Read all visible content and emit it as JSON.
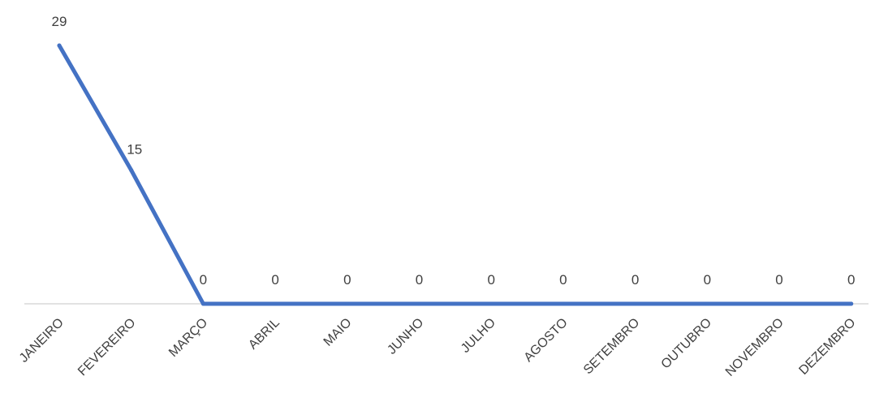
{
  "chart_data": {
    "type": "line",
    "categories": [
      "JANEIRO",
      "FEVEREIRO",
      "MARÇO",
      "ABRIL",
      "MAIO",
      "JUNHO",
      "JULHO",
      "AGOSTO",
      "SETEMBRO",
      "OUTUBRO",
      "NOVEMBRO",
      "DEZEMBRO"
    ],
    "series": [
      {
        "values": [
          29,
          15,
          0,
          0,
          0,
          0,
          0,
          0,
          0,
          0,
          0,
          0
        ]
      }
    ],
    "data_labels": [
      "29",
      "15",
      "0",
      "0",
      "0",
      "0",
      "0",
      "0",
      "0",
      "0",
      "0",
      "0"
    ],
    "ylim": [
      0,
      29
    ],
    "grid": false,
    "legend": "none",
    "colors": {
      "line": "#4472C4",
      "axis": "#D9D9D9",
      "text": "#404040"
    }
  }
}
